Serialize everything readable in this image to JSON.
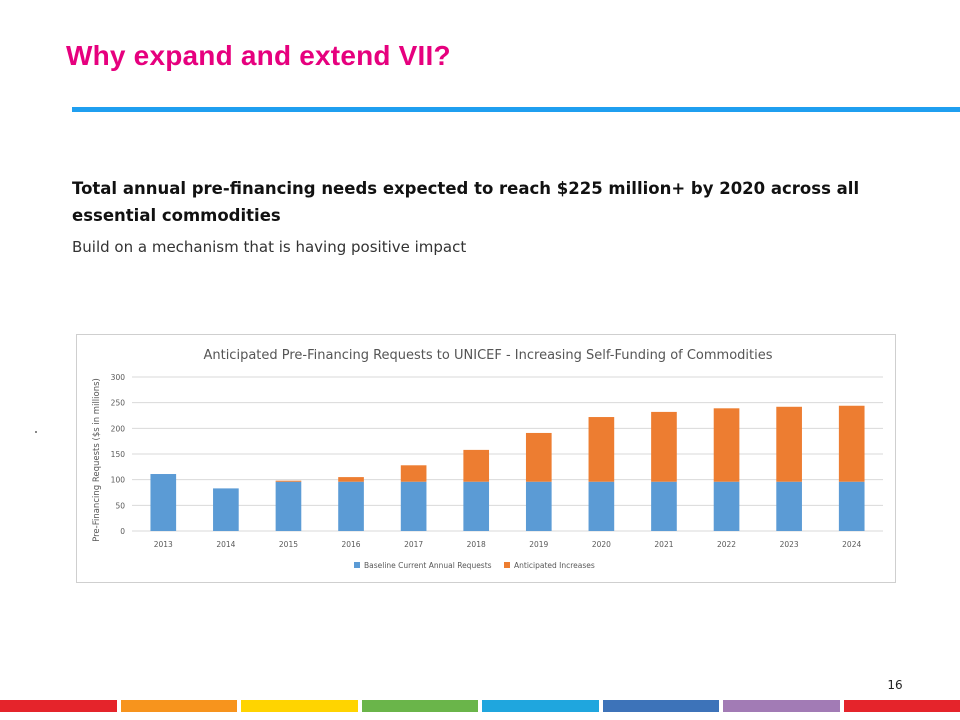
{
  "slide": {
    "title": "Why expand and extend VII?",
    "headline": "Total annual pre-financing needs expected to reach $225 million+ by 2020 across all essential commodities",
    "subheadline": "Build on a mechanism that is having positive impact",
    "page_number": "16"
  },
  "footer_colors": [
    "#e5242b",
    "#f7941d",
    "#ffd400",
    "#6ab54a",
    "#1fa6de",
    "#3d73b9",
    "#a27bb5",
    "#e5242b"
  ],
  "chart_data": {
    "type": "bar",
    "stacked": true,
    "title": "Anticipated Pre-Financing Requests to UNICEF - Increasing Self-Funding of Commodities",
    "ylabel": "Pre-Financing Requests ($s in millions)",
    "xlabel": "",
    "ylim": [
      0,
      300
    ],
    "yticks": [
      0,
      50,
      100,
      150,
      200,
      250,
      300
    ],
    "grid": true,
    "legend_position": "bottom",
    "categories": [
      "2013",
      "2014",
      "2015",
      "2016",
      "2017",
      "2018",
      "2019",
      "2020",
      "2021",
      "2022",
      "2023",
      "2024"
    ],
    "series": [
      {
        "name": "Baseline Current Annual Requests",
        "color": "#5b9bd5",
        "values": [
          111,
          83,
          96,
          96,
          96,
          96,
          96,
          96,
          96,
          96,
          96,
          96
        ]
      },
      {
        "name": "Anticipated Increases",
        "color": "#ed7d31",
        "values": [
          0,
          0,
          2,
          9,
          32,
          62,
          95,
          126,
          136,
          143,
          146,
          148
        ]
      }
    ]
  }
}
